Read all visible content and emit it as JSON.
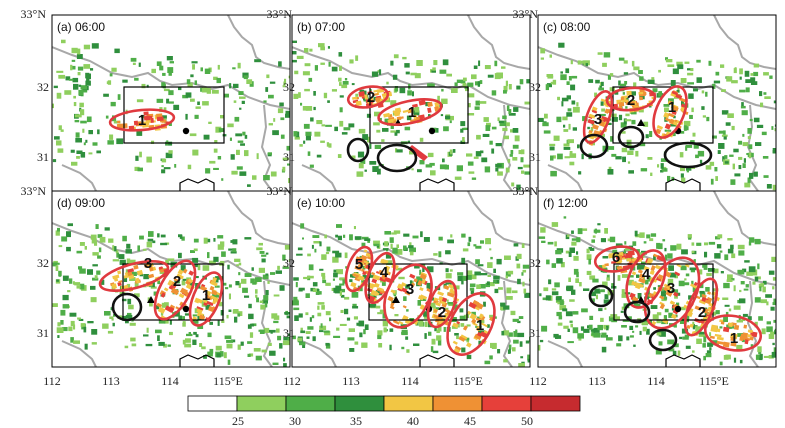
{
  "lat_labels": [
    "33°N",
    "32",
    "31"
  ],
  "lon_labels": [
    "112",
    "113",
    "114",
    "115°E"
  ],
  "colors": {
    "echo_green_light": "#8fcf5e",
    "echo_green": "#4fae48",
    "echo_green_dark": "#2f8f3d",
    "echo_yellow": "#f2c644",
    "echo_orange": "#ef9134",
    "echo_red": "#e6403a",
    "echo_darkred": "#c62b2f",
    "border_gray": "#a8a8a8",
    "ring_red": "#e03a3f",
    "ring_black": "#111111"
  },
  "panels": [
    {
      "label": "(a) 06:00",
      "cells": [
        "1"
      ]
    },
    {
      "label": "(b) 07:00",
      "cells": [
        "2",
        "1"
      ]
    },
    {
      "label": "(c) 08:00",
      "cells": [
        "3",
        "2",
        "1"
      ]
    },
    {
      "label": "(d) 09:00",
      "cells": [
        "3",
        "2",
        "1"
      ]
    },
    {
      "label": "(e) 10:00",
      "cells": [
        "5",
        "4",
        "3",
        "2",
        "1"
      ]
    },
    {
      "label": "(f) 12:00",
      "cells": [
        "6",
        "4",
        "3",
        "2",
        "1"
      ]
    }
  ],
  "colorbar": {
    "ticks": [
      "25",
      "30",
      "35",
      "40",
      "45",
      "50"
    ],
    "colors": [
      "#ffffff",
      "#8fcf5e",
      "#4fae48",
      "#2f8f3d",
      "#f2c644",
      "#ef9134",
      "#e6403a",
      "#c62b2f"
    ]
  }
}
